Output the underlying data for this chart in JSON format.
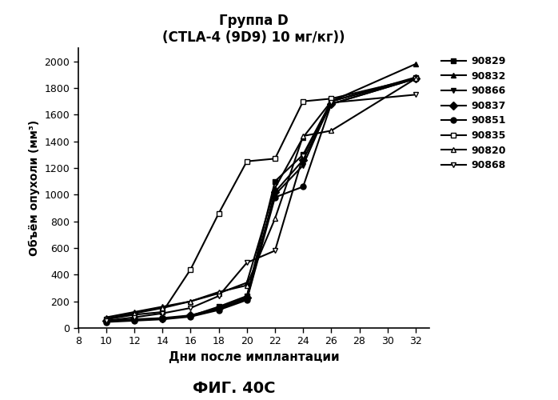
{
  "title_line1": "Группа D",
  "title_line2": "(CTLA-4 (9D9) 10 мг/кг))",
  "xlabel": "Дни после имплантации",
  "ylabel": "Объём опухоли (мм³)",
  "caption": "ФИГ. 40C",
  "xlim": [
    8,
    33
  ],
  "ylim": [
    0,
    2100
  ],
  "xticks": [
    8,
    10,
    12,
    14,
    16,
    18,
    20,
    22,
    24,
    26,
    28,
    30,
    32
  ],
  "yticks": [
    0,
    200,
    400,
    600,
    800,
    1000,
    1200,
    1400,
    1600,
    1800,
    2000
  ],
  "series": [
    {
      "label": "90829",
      "marker": "s",
      "mfc": "black",
      "x": [
        10,
        12,
        14,
        16,
        18,
        20,
        22,
        24,
        26,
        32
      ],
      "y": [
        50,
        60,
        70,
        90,
        160,
        240,
        1100,
        1300,
        1700,
        1880
      ]
    },
    {
      "label": "90832",
      "marker": "^",
      "mfc": "black",
      "x": [
        10,
        12,
        14,
        16,
        18,
        20,
        22,
        24,
        26,
        32
      ],
      "y": [
        80,
        120,
        160,
        200,
        260,
        340,
        1050,
        1430,
        1700,
        1980
      ]
    },
    {
      "label": "90866",
      "marker": "v",
      "mfc": "black",
      "x": [
        10,
        12,
        14,
        16,
        18,
        20,
        22,
        24,
        26,
        32
      ],
      "y": [
        50,
        60,
        70,
        90,
        140,
        220,
        1000,
        1220,
        1700,
        1870
      ]
    },
    {
      "label": "90837",
      "marker": "D",
      "mfc": "black",
      "x": [
        10,
        12,
        14,
        16,
        18,
        20,
        22,
        24,
        26,
        32
      ],
      "y": [
        55,
        65,
        75,
        95,
        150,
        230,
        1020,
        1260,
        1680,
        1870
      ]
    },
    {
      "label": "90851",
      "marker": "o",
      "mfc": "black",
      "x": [
        10,
        12,
        14,
        16,
        18,
        20,
        22,
        24,
        26,
        32
      ],
      "y": [
        45,
        55,
        65,
        85,
        135,
        210,
        980,
        1060,
        1680,
        1870
      ]
    },
    {
      "label": "90835",
      "marker": "s",
      "mfc": "white",
      "x": [
        10,
        12,
        14,
        16,
        18,
        20,
        22,
        24,
        26,
        32
      ],
      "y": [
        65,
        100,
        120,
        440,
        860,
        1250,
        1270,
        1700,
        1720,
        1870
      ]
    },
    {
      "label": "90820",
      "marker": "^",
      "mfc": "white",
      "x": [
        10,
        12,
        14,
        16,
        18,
        20,
        22,
        24,
        26,
        32
      ],
      "y": [
        70,
        110,
        150,
        200,
        270,
        320,
        820,
        1440,
        1480,
        1870
      ]
    },
    {
      "label": "90868",
      "marker": "v",
      "mfc": "white",
      "x": [
        10,
        12,
        14,
        16,
        18,
        20,
        22,
        24,
        26,
        32
      ],
      "y": [
        55,
        80,
        110,
        150,
        240,
        490,
        580,
        1290,
        1690,
        1750
      ]
    }
  ],
  "line_color": "#000000",
  "background_color": "#ffffff"
}
